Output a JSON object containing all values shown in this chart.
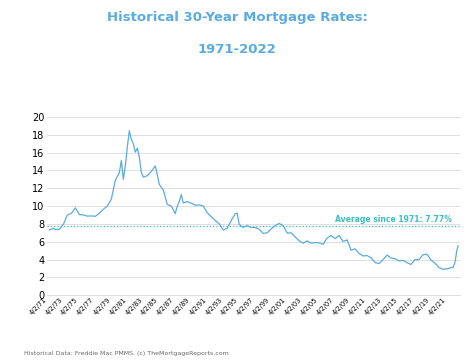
{
  "title_line1": "Historical 30-Year Mortgage Rates:",
  "title_line2": "1971-2022",
  "title_color": "#5aabdf",
  "line_color": "#5aabdf",
  "avg_line_color": "#3bbfbf",
  "avg_value": 7.77,
  "avg_label": "Average since 1971: 7.77%",
  "ylabel_values": [
    0,
    2,
    4,
    6,
    8,
    10,
    12,
    14,
    16,
    18,
    20
  ],
  "ylim": [
    0,
    21
  ],
  "footnote": "Historical Data: Freddie Mac PMMS. (c) TheMortgageReports.com",
  "background_color": "#ffffff",
  "x_tick_years": [
    1971,
    1973,
    1975,
    1977,
    1979,
    1981,
    1983,
    1985,
    1987,
    1989,
    1991,
    1993,
    1995,
    1997,
    1999,
    2001,
    2003,
    2005,
    2007,
    2009,
    2011,
    2013,
    2015,
    2017,
    2019,
    2021
  ],
  "key_points": [
    [
      1971.25,
      7.33
    ],
    [
      1971.5,
      7.4
    ],
    [
      1971.75,
      7.5
    ],
    [
      1972.0,
      7.38
    ],
    [
      1972.5,
      7.4
    ],
    [
      1973.0,
      7.96
    ],
    [
      1973.5,
      9.0
    ],
    [
      1974.0,
      9.19
    ],
    [
      1974.5,
      9.8
    ],
    [
      1975.0,
      9.05
    ],
    [
      1975.5,
      9.0
    ],
    [
      1976.0,
      8.87
    ],
    [
      1976.5,
      8.9
    ],
    [
      1977.0,
      8.85
    ],
    [
      1977.5,
      9.2
    ],
    [
      1978.0,
      9.64
    ],
    [
      1978.5,
      10.0
    ],
    [
      1979.0,
      10.78
    ],
    [
      1979.5,
      12.9
    ],
    [
      1980.0,
      13.74
    ],
    [
      1980.25,
      15.1
    ],
    [
      1980.5,
      13.0
    ],
    [
      1980.75,
      14.5
    ],
    [
      1981.0,
      16.63
    ],
    [
      1981.25,
      18.45
    ],
    [
      1981.5,
      17.5
    ],
    [
      1981.75,
      17.0
    ],
    [
      1982.0,
      16.04
    ],
    [
      1982.25,
      16.5
    ],
    [
      1982.5,
      15.5
    ],
    [
      1982.75,
      13.8
    ],
    [
      1983.0,
      13.24
    ],
    [
      1983.5,
      13.4
    ],
    [
      1984.0,
      13.88
    ],
    [
      1984.5,
      14.5
    ],
    [
      1984.75,
      13.5
    ],
    [
      1985.0,
      12.43
    ],
    [
      1985.5,
      11.8
    ],
    [
      1986.0,
      10.19
    ],
    [
      1986.5,
      10.0
    ],
    [
      1987.0,
      9.15
    ],
    [
      1987.25,
      10.0
    ],
    [
      1987.5,
      10.5
    ],
    [
      1987.75,
      11.3
    ],
    [
      1988.0,
      10.34
    ],
    [
      1988.5,
      10.5
    ],
    [
      1989.0,
      10.32
    ],
    [
      1989.5,
      10.1
    ],
    [
      1990.0,
      10.13
    ],
    [
      1990.5,
      10.0
    ],
    [
      1991.0,
      9.25
    ],
    [
      1991.5,
      8.8
    ],
    [
      1992.0,
      8.39
    ],
    [
      1992.5,
      8.0
    ],
    [
      1993.0,
      7.31
    ],
    [
      1993.5,
      7.5
    ],
    [
      1994.0,
      8.38
    ],
    [
      1994.5,
      9.15
    ],
    [
      1994.75,
      9.2
    ],
    [
      1995.0,
      7.93
    ],
    [
      1995.5,
      7.6
    ],
    [
      1996.0,
      7.81
    ],
    [
      1996.5,
      7.6
    ],
    [
      1997.0,
      7.6
    ],
    [
      1997.5,
      7.4
    ],
    [
      1998.0,
      6.94
    ],
    [
      1998.5,
      7.0
    ],
    [
      1999.0,
      7.44
    ],
    [
      1999.5,
      7.8
    ],
    [
      2000.0,
      8.05
    ],
    [
      2000.5,
      7.8
    ],
    [
      2001.0,
      6.97
    ],
    [
      2001.5,
      7.0
    ],
    [
      2002.0,
      6.54
    ],
    [
      2002.5,
      6.1
    ],
    [
      2003.0,
      5.83
    ],
    [
      2003.5,
      6.1
    ],
    [
      2004.0,
      5.84
    ],
    [
      2004.5,
      5.9
    ],
    [
      2005.0,
      5.87
    ],
    [
      2005.5,
      5.7
    ],
    [
      2006.0,
      6.41
    ],
    [
      2006.5,
      6.7
    ],
    [
      2007.0,
      6.34
    ],
    [
      2007.5,
      6.7
    ],
    [
      2008.0,
      6.03
    ],
    [
      2008.5,
      6.2
    ],
    [
      2009.0,
      5.04
    ],
    [
      2009.5,
      5.2
    ],
    [
      2010.0,
      4.69
    ],
    [
      2010.5,
      4.4
    ],
    [
      2011.0,
      4.45
    ],
    [
      2011.5,
      4.2
    ],
    [
      2012.0,
      3.66
    ],
    [
      2012.5,
      3.55
    ],
    [
      2013.0,
      3.98
    ],
    [
      2013.5,
      4.5
    ],
    [
      2014.0,
      4.17
    ],
    [
      2014.5,
      4.1
    ],
    [
      2015.0,
      3.85
    ],
    [
      2015.5,
      3.9
    ],
    [
      2016.0,
      3.65
    ],
    [
      2016.5,
      3.45
    ],
    [
      2017.0,
      3.99
    ],
    [
      2017.5,
      4.0
    ],
    [
      2018.0,
      4.54
    ],
    [
      2018.5,
      4.6
    ],
    [
      2019.0,
      3.94
    ],
    [
      2019.5,
      3.6
    ],
    [
      2020.0,
      3.11
    ],
    [
      2020.5,
      2.9
    ],
    [
      2021.0,
      2.96
    ],
    [
      2021.25,
      3.0
    ],
    [
      2021.5,
      3.1
    ],
    [
      2021.75,
      3.1
    ],
    [
      2022.0,
      3.7
    ],
    [
      2022.25,
      5.1
    ],
    [
      2022.4,
      5.55
    ]
  ]
}
